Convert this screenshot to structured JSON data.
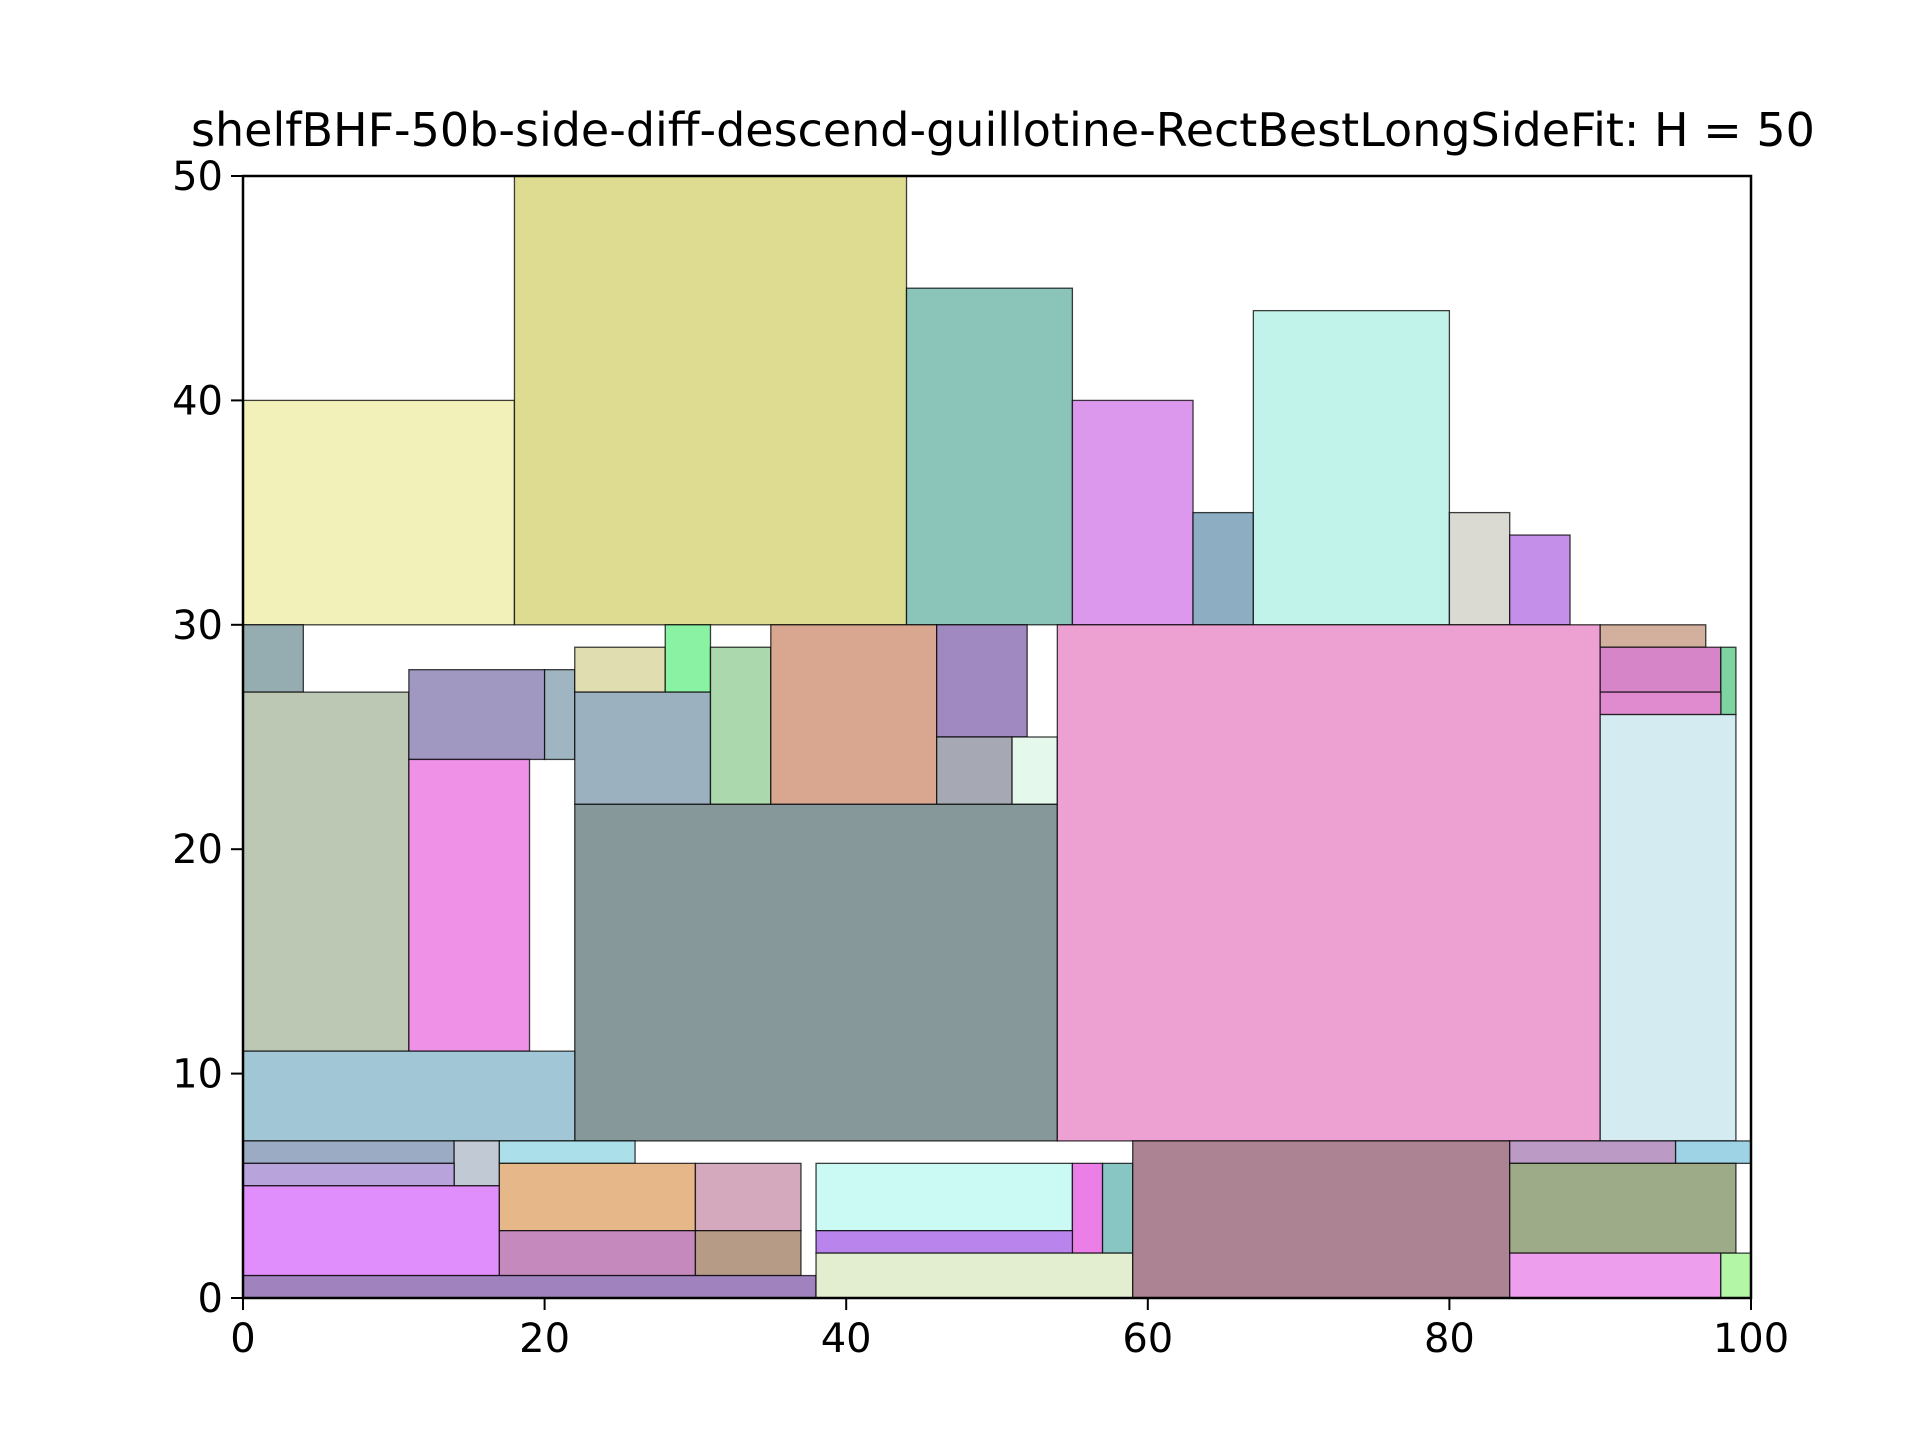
{
  "chart_data": {
    "type": "rectangle_packing",
    "title": "shelfBHF-50b-side-diff-descend-guillotine-RectBestLongSideFit: H = 50",
    "xlabel": "",
    "ylabel": "",
    "xlim": [
      0,
      100
    ],
    "ylim": [
      0,
      50
    ],
    "xticks": [
      "0",
      "20",
      "40",
      "60",
      "80",
      "100"
    ],
    "yticks": [
      "0",
      "10",
      "20",
      "30",
      "40",
      "50"
    ],
    "grid": false,
    "rectangles": [
      {
        "x": 0,
        "y": 30,
        "w": 18,
        "h": 10,
        "color": "#f3f1ba"
      },
      {
        "x": 18,
        "y": 30,
        "w": 26,
        "h": 20,
        "color": "#dddc91"
      },
      {
        "x": 44,
        "y": 30,
        "w": 11,
        "h": 15,
        "color": "#8bc5ba"
      },
      {
        "x": 55,
        "y": 30,
        "w": 8,
        "h": 10,
        "color": "#dc98ed"
      },
      {
        "x": 63,
        "y": 30,
        "w": 4,
        "h": 5,
        "color": "#8daec2"
      },
      {
        "x": 67,
        "y": 30,
        "w": 13,
        "h": 14,
        "color": "#c2f3ea"
      },
      {
        "x": 80,
        "y": 30,
        "w": 4,
        "h": 5,
        "color": "#dad9d2"
      },
      {
        "x": 84,
        "y": 30,
        "w": 4,
        "h": 4,
        "color": "#c48fe8"
      },
      {
        "x": 0,
        "y": 27,
        "w": 4,
        "h": 3,
        "color": "#95adb0"
      },
      {
        "x": 0,
        "y": 11,
        "w": 11,
        "h": 16,
        "color": "#bcc7b4"
      },
      {
        "x": 11,
        "y": 24,
        "w": 9,
        "h": 4,
        "color": "#a198c1"
      },
      {
        "x": 20,
        "y": 24,
        "w": 2,
        "h": 4,
        "color": "#9fb6c2"
      },
      {
        "x": 11,
        "y": 11,
        "w": 8,
        "h": 13,
        "color": "#ee91e7"
      },
      {
        "x": 22,
        "y": 27,
        "w": 6,
        "h": 2,
        "color": "#e0ddb0"
      },
      {
        "x": 28,
        "y": 27,
        "w": 3,
        "h": 3,
        "color": "#8af3a3"
      },
      {
        "x": 22,
        "y": 22,
        "w": 9,
        "h": 5,
        "color": "#9cb1bf"
      },
      {
        "x": 31,
        "y": 22,
        "w": 4,
        "h": 7,
        "color": "#abd8ad"
      },
      {
        "x": 35,
        "y": 22,
        "w": 11,
        "h": 8,
        "color": "#d9a690"
      },
      {
        "x": 46,
        "y": 25,
        "w": 6,
        "h": 5,
        "color": "#a088c1"
      },
      {
        "x": 46,
        "y": 22,
        "w": 5,
        "h": 3,
        "color": "#a6a8b3"
      },
      {
        "x": 51,
        "y": 22,
        "w": 3,
        "h": 3,
        "color": "#e4f9ec"
      },
      {
        "x": 22,
        "y": 7,
        "w": 32,
        "h": 15,
        "color": "#869899"
      },
      {
        "x": 54,
        "y": 7,
        "w": 36,
        "h": 23,
        "color": "#eda0d2"
      },
      {
        "x": 0,
        "y": 7,
        "w": 22,
        "h": 4,
        "color": "#a1c6d5"
      },
      {
        "x": 90,
        "y": 29,
        "w": 7,
        "h": 1,
        "color": "#d3b09d"
      },
      {
        "x": 90,
        "y": 27,
        "w": 8,
        "h": 2,
        "color": "#d585c8"
      },
      {
        "x": 98,
        "y": 26,
        "w": 1,
        "h": 3,
        "color": "#7dd4a1"
      },
      {
        "x": 90,
        "y": 26,
        "w": 8,
        "h": 1,
        "color": "#e08bd0"
      },
      {
        "x": 90,
        "y": 7,
        "w": 9,
        "h": 19,
        "color": "#d5ebf2"
      },
      {
        "x": 0,
        "y": 6,
        "w": 14,
        "h": 1,
        "color": "#9cabc4"
      },
      {
        "x": 14,
        "y": 5,
        "w": 3,
        "h": 2,
        "color": "#c1cad4"
      },
      {
        "x": 17,
        "y": 6,
        "w": 9,
        "h": 1,
        "color": "#abe0ea"
      },
      {
        "x": 0,
        "y": 5,
        "w": 14,
        "h": 1,
        "color": "#b8a4da"
      },
      {
        "x": 0,
        "y": 1,
        "w": 17,
        "h": 4,
        "color": "#e08efc"
      },
      {
        "x": 17,
        "y": 3,
        "w": 13,
        "h": 3,
        "color": "#e6b889"
      },
      {
        "x": 30,
        "y": 3,
        "w": 7,
        "h": 3,
        "color": "#d4a9bd"
      },
      {
        "x": 17,
        "y": 1,
        "w": 13,
        "h": 2,
        "color": "#c689bd"
      },
      {
        "x": 30,
        "y": 1,
        "w": 7,
        "h": 2,
        "color": "#b69b87"
      },
      {
        "x": 0,
        "y": 0,
        "w": 38,
        "h": 1,
        "color": "#9f82be"
      },
      {
        "x": 38,
        "y": 3,
        "w": 17,
        "h": 3,
        "color": "#cbfaf4"
      },
      {
        "x": 55,
        "y": 2,
        "w": 2,
        "h": 4,
        "color": "#ec7ee8"
      },
      {
        "x": 57,
        "y": 2,
        "w": 2,
        "h": 4,
        "color": "#88c6c4"
      },
      {
        "x": 38,
        "y": 2,
        "w": 17,
        "h": 1,
        "color": "#b985ec"
      },
      {
        "x": 38,
        "y": 0,
        "w": 21,
        "h": 2,
        "color": "#e3edcf"
      },
      {
        "x": 59,
        "y": 0,
        "w": 25,
        "h": 7,
        "color": "#ab8393"
      },
      {
        "x": 84,
        "y": 6,
        "w": 11,
        "h": 1,
        "color": "#bb9bc6"
      },
      {
        "x": 95,
        "y": 6,
        "w": 5,
        "h": 1,
        "color": "#9ed2e5"
      },
      {
        "x": 84,
        "y": 2,
        "w": 15,
        "h": 4,
        "color": "#9eab88"
      },
      {
        "x": 84,
        "y": 0,
        "w": 14,
        "h": 2,
        "color": "#ed9eec"
      },
      {
        "x": 98,
        "y": 0,
        "w": 2,
        "h": 2,
        "color": "#b3f7a6"
      }
    ]
  }
}
